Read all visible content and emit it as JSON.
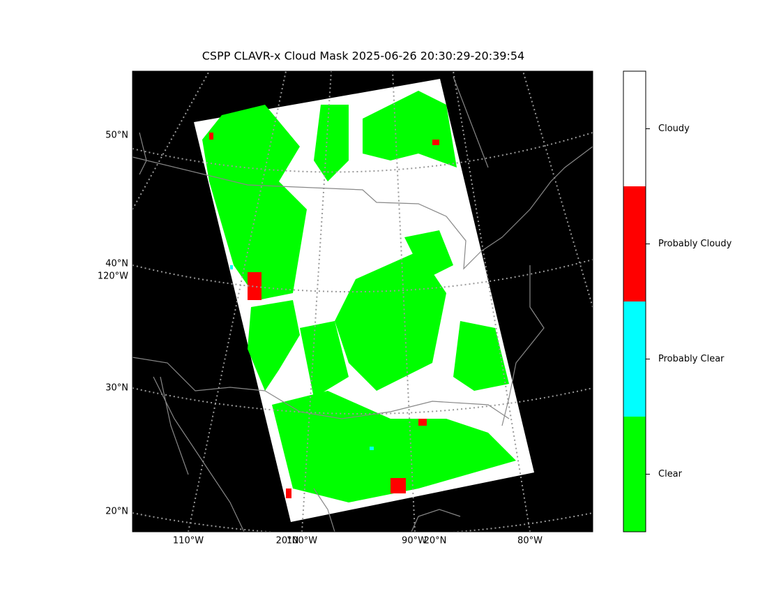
{
  "title": "CSPP CLAVR-x Cloud Mask 2025-06-26 20:30:29-20:39:54",
  "map": {
    "lat_labels": [
      "50°N",
      "40°N",
      "120°W",
      "30°N",
      "20°N"
    ],
    "lon_labels": [
      "110°W",
      "20°N",
      "100°W",
      "90°W",
      "20°N",
      "80°W"
    ]
  },
  "colorbar": {
    "categories": [
      "Clear",
      "Probably Clear",
      "Probably Cloudy",
      "Cloudy"
    ],
    "colors": [
      "#00ff00",
      "#00ffff",
      "#ff0000",
      "#ffffff"
    ]
  }
}
